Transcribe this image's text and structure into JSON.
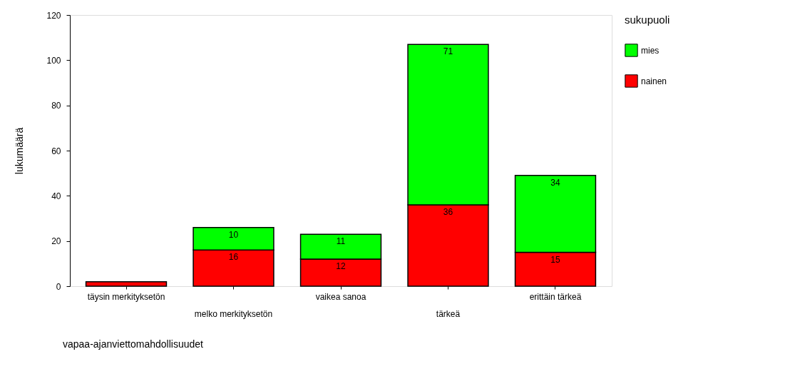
{
  "chart_data": {
    "type": "bar",
    "stacked": true,
    "xlabel": "vapaa-ajanviettomahdollisuudet",
    "ylabel": "lukumäärä",
    "legend_title": "sukupuoli",
    "categories": [
      "täysin merkityksetön",
      "melko merkityksetön",
      "vaikea sanoa",
      "tärkeä",
      "erittäin tärkeä"
    ],
    "series": [
      {
        "name": "nainen",
        "color": "#ff0000",
        "values": [
          2,
          16,
          12,
          36,
          15
        ],
        "value_labels": [
          null,
          "16",
          "12",
          "36",
          "15"
        ]
      },
      {
        "name": "mies",
        "color": "#00ff00",
        "values": [
          null,
          10,
          11,
          71,
          34
        ],
        "value_labels": [
          null,
          "10",
          "11",
          "71",
          "34"
        ]
      }
    ],
    "ylim": [
      0,
      120
    ],
    "yticks": [
      0,
      20,
      40,
      60,
      80,
      100,
      120
    ],
    "grid": false,
    "legend": "right"
  }
}
